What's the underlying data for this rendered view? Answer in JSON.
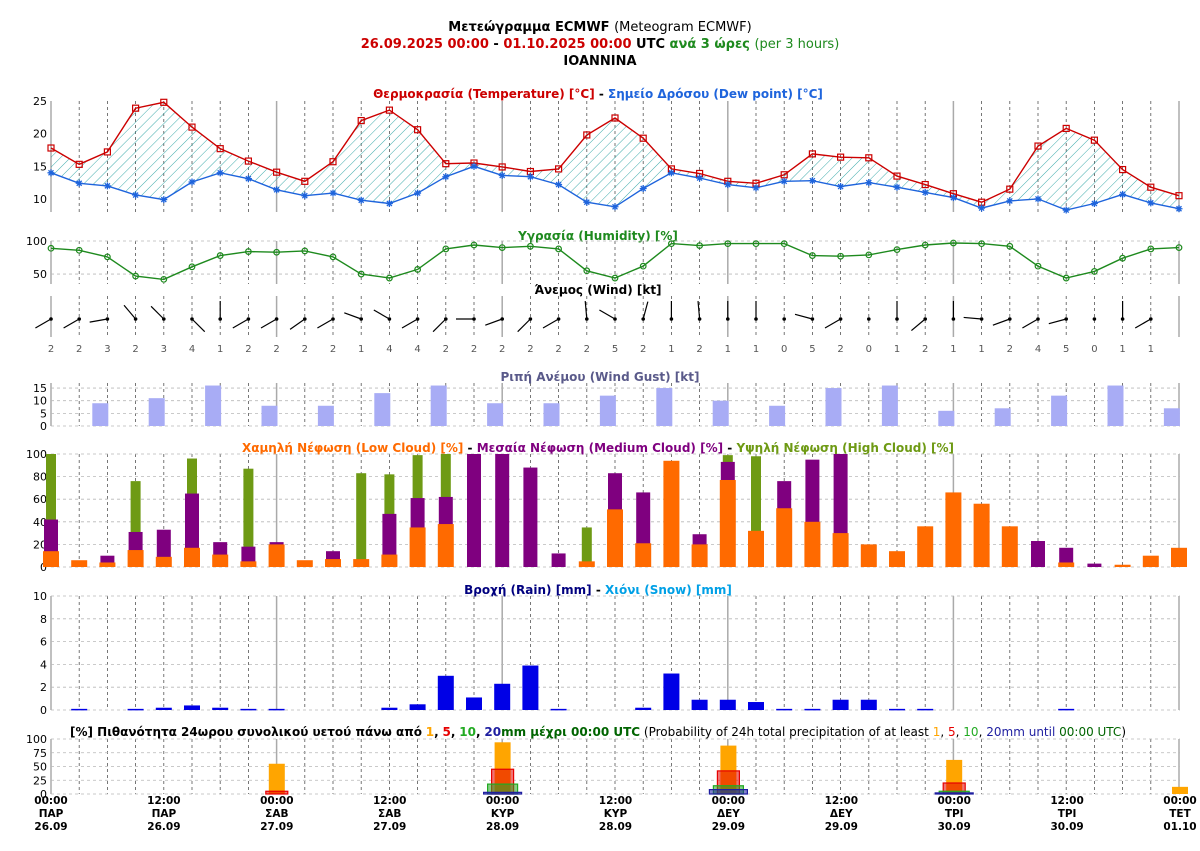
{
  "header": {
    "title_bold": "Μετεώγραμμα ECMWF",
    "title_normal": "(Meteogram ECMWF)",
    "start": "26.09.2025 00:00",
    "dash": "-",
    "end": "01.10.2025 00:00",
    "utc": "UTC",
    "step": "ανά 3 ώρες",
    "step_en": "(per 3 hours)",
    "location": "IOANNINA"
  },
  "colors": {
    "temperature": "#cc0000",
    "dewpoint": "#1e64dc",
    "humidity": "#1e8a1e",
    "gust": "#a8acf5",
    "gust_title": "#5a5a8a",
    "low_cloud": "#ff6a00",
    "medium_cloud": "#7f007f",
    "high_cloud": "#6e9a14",
    "rain": "#0000e6",
    "rain_title": "#00007f",
    "snow": "#00a0e6",
    "p1": "#ffa500",
    "p5": "#e60000",
    "p10": "#22aa22",
    "p20": "#1e1ea0",
    "prob_time": "#006400",
    "header_date": "#cc0000",
    "header_step": "#1e8a1e"
  },
  "panel_titles": {
    "temp": {
      "a": "Θερμοκρασία (Temperature) [°C]",
      "sep": " - ",
      "b": "Σημείο Δρόσου (Dew point) [°C]"
    },
    "humidity": "Υγρασία (Humidity) [%]",
    "wind": "Άνεμος (Wind) [kt]",
    "gust": "Ριπή Ανέμου (Wind Gust) [kt]",
    "cloud": {
      "low": "Χαμηλή Νέφωση (Low Cloud) [%]",
      "sep": " - ",
      "med": "Μεσαία Νέφωση (Medium Cloud) [%]",
      "high": "Υψηλή Νέφωση (High Cloud) [%]"
    },
    "precip": {
      "rain": "Βροχή (Rain) [mm]",
      "sep": " - ",
      "snow": "Χιόνι (Snow) [mm]"
    },
    "prob": {
      "gr_prefix": "[%] Πιθανότητα 24ωρου συνολικού υετού πάνω από",
      "gr_until": "mm μέχρι 00:00 UTC",
      "en_prefix": "(Probability of 24h total precipitation of at least",
      "en_until": "mm until",
      "en_time": "00:00 UTC",
      "en_close": ")",
      "t1": "1",
      "t5": "5",
      "t10": "10",
      "t20": "20"
    }
  },
  "x_axis": [
    {
      "time": "00:00",
      "day": "ΠΑΡ",
      "date": "26.09"
    },
    {
      "time": "12:00",
      "day": "ΠΑΡ",
      "date": "26.09"
    },
    {
      "time": "00:00",
      "day": "ΣΑΒ",
      "date": "27.09"
    },
    {
      "time": "12:00",
      "day": "ΣΑΒ",
      "date": "27.09"
    },
    {
      "time": "00:00",
      "day": "ΚΥΡ",
      "date": "28.09"
    },
    {
      "time": "12:00",
      "day": "ΚΥΡ",
      "date": "28.09"
    },
    {
      "time": "00:00",
      "day": "ΔΕΥ",
      "date": "29.09"
    },
    {
      "time": "12:00",
      "day": "ΔΕΥ",
      "date": "29.09"
    },
    {
      "time": "00:00",
      "day": "ΤΡΙ",
      "date": "30.09"
    },
    {
      "time": "12:00",
      "day": "ΤΡΙ",
      "date": "30.09"
    },
    {
      "time": "00:00",
      "day": "ΤΕΤ",
      "date": "01.10"
    }
  ],
  "chart_data": [
    {
      "type": "line",
      "title": "Θερμοκρασία (Temperature) [°C] - Σημείο Δρόσου (Dew point) [°C]",
      "x_step": "3 hours",
      "ylim": [
        8,
        25
      ],
      "yticks": [
        10,
        15,
        20,
        25
      ],
      "series": [
        {
          "name": "Θερμοκρασία (Temperature) [°C]",
          "values": [
            17.8,
            15.3,
            17.2,
            23.9,
            24.8,
            21.0,
            17.7,
            15.8,
            14.1,
            12.7,
            15.7,
            22.0,
            23.6,
            20.6,
            15.4,
            15.5,
            14.9,
            14.2,
            14.6,
            19.8,
            22.4,
            19.3,
            14.6,
            13.9,
            12.7,
            12.4,
            13.7,
            16.9,
            16.4,
            16.3,
            13.5,
            12.2,
            10.8,
            9.5,
            11.5,
            18.1,
            20.8,
            19.0,
            14.5,
            11.8,
            10.5
          ]
        },
        {
          "name": "Σημείο Δρόσου (Dew point) [°C]",
          "values": [
            14.0,
            12.4,
            12.0,
            10.6,
            9.9,
            12.6,
            14.0,
            13.1,
            11.4,
            10.5,
            10.9,
            9.8,
            9.3,
            10.9,
            13.4,
            15.0,
            13.6,
            13.4,
            12.2,
            9.5,
            8.8,
            11.6,
            14.0,
            13.2,
            12.2,
            11.7,
            12.7,
            12.8,
            11.9,
            12.5,
            11.8,
            11.0,
            10.2,
            8.6,
            9.7,
            10.0,
            8.3,
            9.3,
            10.7,
            9.4,
            8.5
          ]
        }
      ]
    },
    {
      "type": "line",
      "title": "Υγρασία (Humidity) [%]",
      "ylim": [
        35,
        100
      ],
      "yticks": [
        50,
        100
      ],
      "series": [
        {
          "name": "Υγρασία (Humidity) [%]",
          "values": [
            89,
            86,
            76,
            47,
            42,
            61,
            78,
            84,
            83,
            85,
            76,
            50,
            44,
            57,
            88,
            94,
            90,
            92,
            88,
            55,
            44,
            62,
            96,
            93,
            96,
            96,
            96,
            78,
            77,
            79,
            87,
            94,
            97,
            96,
            92,
            62,
            44,
            54,
            74,
            88,
            90
          ]
        }
      ]
    },
    {
      "type": "table",
      "title": "Άνεμος (Wind) [kt]",
      "speeds": [
        2,
        2,
        3,
        2,
        3,
        4,
        1,
        2,
        2,
        2,
        2,
        1,
        4,
        4,
        2,
        2,
        2,
        2,
        2,
        2,
        5,
        2,
        1,
        2,
        1,
        1,
        0,
        5,
        2,
        0,
        1,
        2,
        1,
        1,
        2,
        4,
        5,
        0,
        1,
        1
      ],
      "directions_deg": [
        240,
        240,
        260,
        320,
        315,
        135,
        0,
        240,
        240,
        235,
        240,
        290,
        300,
        240,
        225,
        270,
        250,
        225,
        240,
        355,
        300,
        15,
        0,
        355,
        0,
        0,
        255,
        285,
        240,
        0,
        0,
        230,
        0,
        275,
        250,
        240,
        255,
        0,
        0,
        240
      ]
    },
    {
      "type": "bar",
      "title": "Ριπή Ανέμου (Wind Gust) [kt]",
      "ylim": [
        0,
        17
      ],
      "yticks": [
        0,
        5,
        10,
        15
      ],
      "x_index": [
        2,
        4,
        6,
        8,
        10,
        12,
        14,
        16,
        18,
        20,
        22,
        24,
        26,
        28,
        30,
        32,
        34,
        36,
        38,
        40
      ],
      "values": [
        9,
        11,
        16,
        8,
        8,
        13,
        16,
        9,
        9,
        12,
        15,
        10,
        8,
        15,
        16,
        6,
        7,
        12,
        16,
        7
      ]
    },
    {
      "type": "bar",
      "title": "Χαμηλή Νέφωση (Low Cloud) [%] - Μεσαία Νέφωση (Medium Cloud) [%] - Υψηλή Νέφωση (High Cloud) [%]",
      "ylim": [
        0,
        100
      ],
      "yticks": [
        0,
        20,
        40,
        60,
        80,
        100
      ],
      "series": [
        {
          "name": "Υψηλή Νέφωση (High Cloud) [%]",
          "values": [
            100,
            0,
            0,
            76,
            0,
            96,
            0,
            87,
            0,
            0,
            0,
            83,
            82,
            99,
            100,
            100,
            0,
            0,
            0,
            35,
            48,
            0,
            0,
            0,
            99,
            98,
            0,
            43,
            100,
            0,
            0,
            0,
            0,
            0,
            0,
            0,
            0,
            0,
            0,
            0,
            0
          ]
        },
        {
          "name": "Μεσαία Νέφωση (Medium Cloud) [%]",
          "values": [
            42,
            0,
            10,
            31,
            33,
            65,
            22,
            18,
            22,
            0,
            14,
            0,
            47,
            61,
            62,
            100,
            100,
            88,
            12,
            0,
            83,
            66,
            0,
            29,
            93,
            0,
            76,
            95,
            100,
            0,
            0,
            0,
            0,
            0,
            3,
            23,
            17,
            3,
            0,
            0,
            0
          ]
        },
        {
          "name": "Χαμηλή Νέφωση (Low Cloud) [%]",
          "values": [
            14,
            6,
            4,
            15,
            9,
            17,
            11,
            5,
            20,
            6,
            7,
            7,
            11,
            35,
            38,
            0,
            0,
            0,
            0,
            5,
            51,
            21,
            94,
            20,
            77,
            32,
            52,
            40,
            30,
            20,
            14,
            36,
            66,
            56,
            36,
            0,
            4,
            0,
            2,
            10,
            17
          ]
        }
      ]
    },
    {
      "type": "bar",
      "title": "Βροχή (Rain) [mm] - Χιόνι (Snow) [mm]",
      "ylim": [
        0,
        10
      ],
      "yticks": [
        0,
        2,
        4,
        6,
        8,
        10
      ],
      "series": [
        {
          "name": "Βροχή (Rain) [mm]",
          "values": [
            0.1,
            0.1,
            0.2,
            0.4,
            0.2,
            0.1,
            0.1,
            0.2,
            0.5,
            3.0,
            1.1,
            2.3,
            3.9,
            0.1,
            0.2,
            3.2,
            0.9,
            0.9,
            0.7,
            0.1,
            0.1,
            0.9,
            0.9,
            0.1,
            0.1,
            0.1
          ]
        },
        {
          "name": "Χιόνι (Snow) [mm]",
          "values": []
        }
      ],
      "x_index": [
        1,
        3,
        4,
        5,
        6,
        7,
        8,
        12,
        13,
        14,
        15,
        16,
        17,
        18,
        21,
        22,
        23,
        24,
        25,
        26,
        27,
        28,
        29,
        30,
        31,
        36
      ]
    },
    {
      "type": "bar",
      "title": "[%] Πιθανότητα 24ωρου συνολικού υετού πάνω από 1, 5, 10, 20mm μέχρι 00:00 UTC (Probability of 24h total precipitation of at least 1, 5, 10, 20mm until 00:00 UTC)",
      "ylim": [
        0,
        100
      ],
      "yticks": [
        0,
        25,
        50,
        75,
        100
      ],
      "categories": [
        "27.09",
        "28.09",
        "29.09",
        "30.09",
        "01.10"
      ],
      "series": [
        {
          "name": "1",
          "values": [
            55,
            94,
            88,
            62,
            13
          ]
        },
        {
          "name": "5",
          "values": [
            5,
            45,
            42,
            20,
            0
          ]
        },
        {
          "name": "10",
          "values": [
            0,
            18,
            15,
            5,
            0
          ]
        },
        {
          "name": "20",
          "values": [
            0,
            3,
            8,
            2,
            0
          ]
        }
      ]
    }
  ]
}
